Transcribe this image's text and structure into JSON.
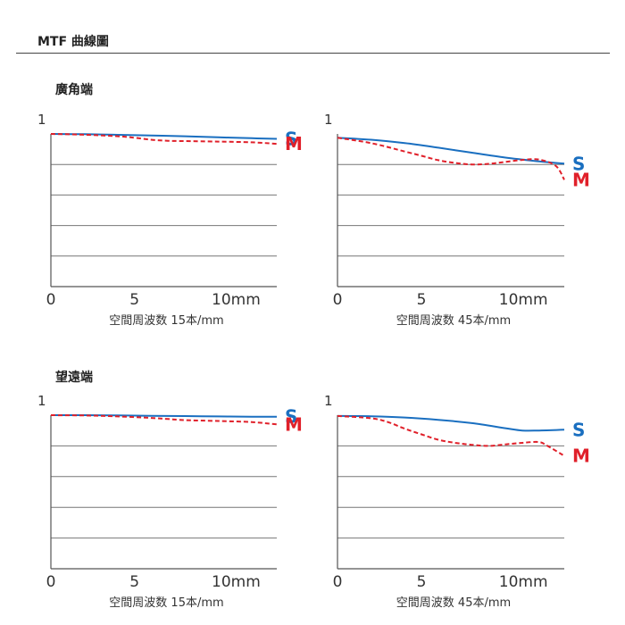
{
  "header": {
    "title": "MTF 曲線圖"
  },
  "sections": [
    {
      "title": "廣角端"
    },
    {
      "title": "望遠端"
    }
  ],
  "colors": {
    "S": "#1a6fc0",
    "M": "#e0202a"
  },
  "chart_data": [
    {
      "type": "line",
      "section": "廣角端",
      "xlabel": "空間周波数 15本/mm",
      "xlim": [
        0,
        13.5
      ],
      "ylim": [
        0,
        1
      ],
      "xticks": [
        "0",
        "5",
        "10mm"
      ],
      "yticks": [
        "1"
      ],
      "grid": true,
      "series": [
        {
          "name": "S",
          "style": "solid",
          "x": [
            0,
            2,
            4,
            6,
            8,
            10,
            12,
            13.5
          ],
          "y": [
            1.0,
            0.998,
            0.994,
            0.99,
            0.985,
            0.978,
            0.972,
            0.968
          ]
        },
        {
          "name": "M",
          "style": "dashed",
          "x": [
            0,
            2,
            4,
            5,
            6,
            7,
            8,
            10,
            12,
            13.5
          ],
          "y": [
            1.0,
            0.995,
            0.985,
            0.975,
            0.962,
            0.955,
            0.953,
            0.95,
            0.945,
            0.935
          ]
        }
      ]
    },
    {
      "type": "line",
      "section": "廣角端",
      "xlabel": "空間周波数 45本/mm",
      "xlim": [
        0,
        13.5
      ],
      "ylim": [
        0,
        1
      ],
      "xticks": [
        "0",
        "5",
        "10mm"
      ],
      "yticks": [
        "1"
      ],
      "grid": true,
      "series": [
        {
          "name": "S",
          "style": "solid",
          "x": [
            0,
            2,
            4,
            6,
            8,
            10,
            12,
            13.5
          ],
          "y": [
            0.975,
            0.962,
            0.94,
            0.91,
            0.877,
            0.845,
            0.82,
            0.805
          ]
        },
        {
          "name": "M",
          "style": "dashed",
          "x": [
            0,
            2,
            4,
            5,
            6,
            7,
            8,
            9,
            10,
            11,
            12,
            13,
            13.5
          ],
          "y": [
            0.975,
            0.94,
            0.885,
            0.857,
            0.828,
            0.81,
            0.8,
            0.804,
            0.817,
            0.83,
            0.832,
            0.79,
            0.7
          ]
        }
      ]
    },
    {
      "type": "line",
      "section": "望遠端",
      "xlabel": "空間周波数 15本/mm",
      "xlim": [
        0,
        13.5
      ],
      "ylim": [
        0,
        1
      ],
      "xticks": [
        "0",
        "5",
        "10mm"
      ],
      "yticks": [
        "1"
      ],
      "grid": true,
      "series": [
        {
          "name": "S",
          "style": "solid",
          "x": [
            0,
            2,
            4,
            6,
            8,
            10,
            12,
            13.5
          ],
          "y": [
            1.0,
            1.0,
            0.998,
            0.996,
            0.994,
            0.992,
            0.99,
            0.99
          ]
        },
        {
          "name": "M",
          "style": "dashed",
          "x": [
            0,
            2,
            4,
            6,
            7,
            8,
            10,
            12,
            13.5
          ],
          "y": [
            1.0,
            0.998,
            0.992,
            0.982,
            0.975,
            0.968,
            0.962,
            0.955,
            0.94
          ]
        }
      ]
    },
    {
      "type": "line",
      "section": "望遠端",
      "xlabel": "空間周波数 45本/mm",
      "xlim": [
        0,
        13.5
      ],
      "ylim": [
        0,
        1
      ],
      "xticks": [
        "0",
        "5",
        "10mm"
      ],
      "yticks": [
        "1"
      ],
      "grid": true,
      "series": [
        {
          "name": "S",
          "style": "solid",
          "x": [
            0,
            2,
            4,
            6,
            8,
            10,
            11,
            12,
            13.5
          ],
          "y": [
            0.995,
            0.993,
            0.985,
            0.97,
            0.948,
            0.915,
            0.9,
            0.9,
            0.905
          ]
        },
        {
          "name": "M",
          "style": "dashed",
          "x": [
            0,
            2,
            3,
            4,
            5,
            6,
            7,
            8,
            9,
            10,
            11,
            12,
            12.5,
            13.5
          ],
          "y": [
            0.995,
            0.98,
            0.955,
            0.912,
            0.875,
            0.84,
            0.82,
            0.807,
            0.8,
            0.81,
            0.82,
            0.825,
            0.8,
            0.735
          ]
        }
      ]
    }
  ]
}
